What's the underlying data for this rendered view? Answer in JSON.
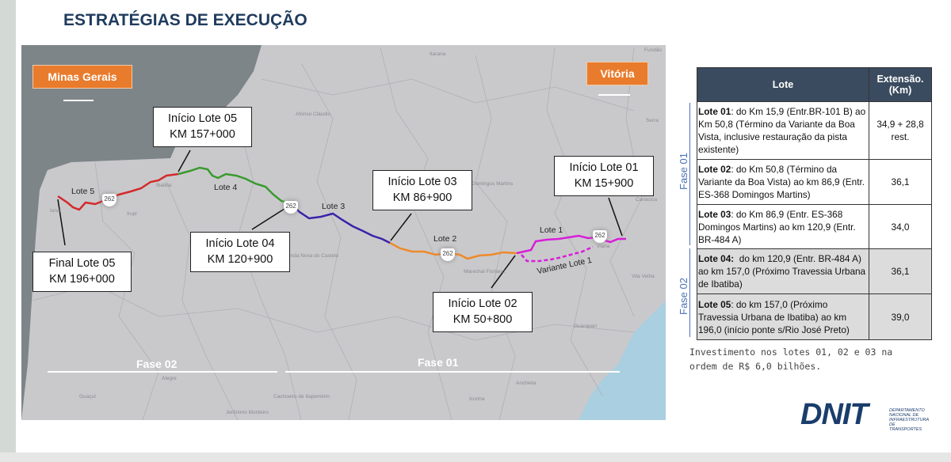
{
  "title": "ESTRATÉGIAS DE EXECUÇÃO",
  "map": {
    "left_destination": "Minas Gerais",
    "right_destination": "Vitória",
    "callouts": [
      {
        "line1": "Início Lote 05",
        "line2": "KM 157+000"
      },
      {
        "line1": "Final Lote 05",
        "line2": "KM 196+000"
      },
      {
        "line1": "Início Lote 04",
        "line2": "KM 120+900"
      },
      {
        "line1": "Início Lote 03",
        "line2": "KM 86+900"
      },
      {
        "line1": "Início Lote 02",
        "line2": "KM 50+800"
      },
      {
        "line1": "Início Lote 01",
        "line2": "KM 15+900"
      }
    ],
    "route_labels": [
      "Lote 5",
      "Lote 4",
      "Lote 3",
      "Lote 2",
      "Lote 1",
      "Variante Lote 1"
    ],
    "route_colors": {
      "lote5": "#d42a2a",
      "lote4": "#3a9a2e",
      "lote3": "#3b22a8",
      "lote2": "#ee8a2a",
      "lote1": "#d81ed8"
    },
    "highway_shield": "262",
    "towns": [
      "Itarana",
      "Fundão",
      "Afonso Cláudio",
      "Serra",
      "Ibatiba",
      "Irupi",
      "Iuna",
      "Domingos Martins",
      "Cariacica",
      "Viana",
      "Venda Nova do Castelo",
      "Marechal Floriano",
      "Vila Velha",
      "Guarapari",
      "Alegre",
      "Guaçuí",
      "Cachoeiro de Itapemirim",
      "Jerônimo Monteiro",
      "Anchieta",
      "Iconha"
    ],
    "fase02": "Fase 02",
    "fase01": "Fase 01"
  },
  "table": {
    "headers": {
      "lote": "Lote",
      "extensao": "Extensão. (Km)"
    },
    "rows": [
      {
        "bold": "Lote 01",
        "text": ": do Km 15,9 (Entr.BR-101 B) ao Km 50,8 (Término da Variante da Boa Vista, inclusive restauração da pista existente)",
        "ext": "34,9 + 28,8 rest."
      },
      {
        "bold": "Lote 02",
        "text": ": do Km 50,8 (Término da Variante da Boa Vista) ao km 86,9 (Entr. ES-368 Domingos Martins)",
        "ext": "36,1"
      },
      {
        "bold": "Lote 03",
        "text": ": do Km 86,9 (Entr. ES-368 Domingos Martins) ao km 120,9 (Entr. BR-484 A)",
        "ext": "34,0"
      },
      {
        "bold": "Lote 04:",
        "text": "  do km 120,9 (Entr. BR-484 A) ao km 157,0 (Próximo Travessia Urbana de Ibatiba)",
        "ext": "36,1"
      },
      {
        "bold": "Lote 05",
        "text": ": do km 157,0 (Próximo Travessia Urbana de Ibatiba) ao km 196,0 (início ponte s/Rio José Preto)",
        "ext": "39,0"
      }
    ],
    "fase01": "Fase 01",
    "fase02": "Fase 02"
  },
  "note": "Investimento nos lotes 01, 02 e 03 na\nordem de R$ 6,0 bilhões.",
  "logo": {
    "name": "DNIT",
    "subtitle": "DEPARTAMENTO NACIONAL DE INFRAESTRUTURA DE TRANSPORTES"
  }
}
